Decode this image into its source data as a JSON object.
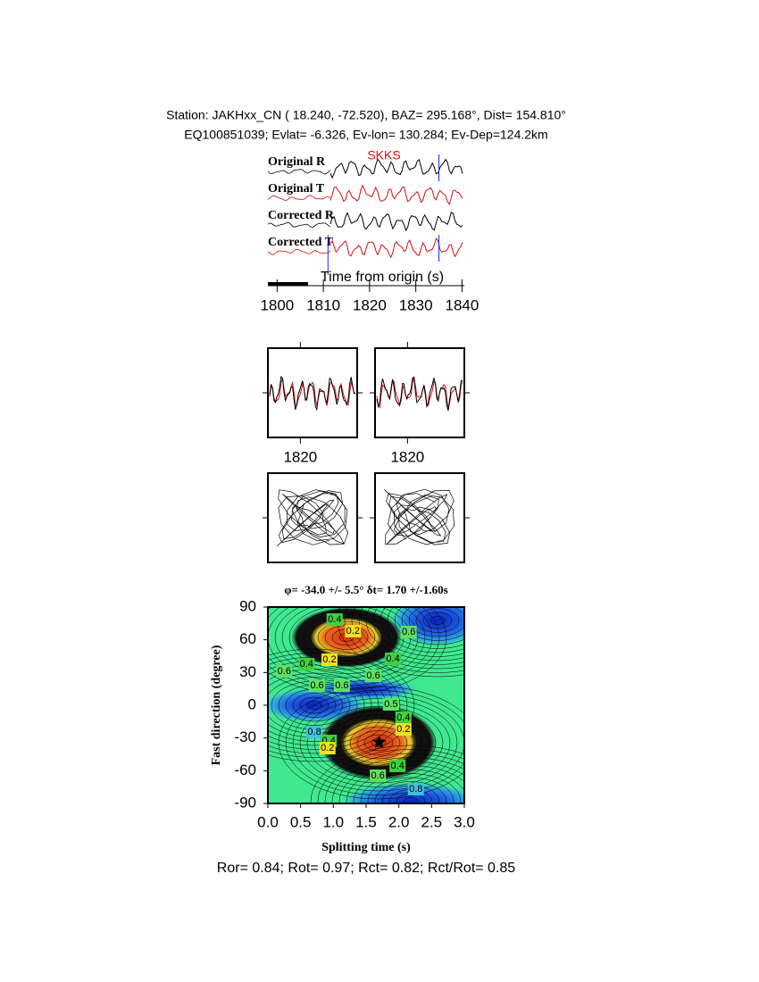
{
  "header": {
    "line1": "Station: JAKHxx_CN (  18.240,  -72.520), BAZ=  295.168°, Dist=  154.810°",
    "line2": "EQ100851039; Evlat=  -6.326, Ev-lon= 130.284; Ev-Dep=124.2km"
  },
  "chart_data": [
    {
      "type": "seismogram",
      "phase": "SKKS",
      "x_label": "Time from origin (s)",
      "traces": [
        {
          "name": "Original R",
          "color": "#000000"
        },
        {
          "name": "Original T",
          "color": "#d01010"
        },
        {
          "name": "Corrected R",
          "color": "#000000"
        },
        {
          "name": "Corrected T",
          "color": "#d01010"
        }
      ],
      "markers": [
        {
          "trace": 0,
          "time": 1835
        },
        {
          "trace": 3,
          "time": 1835
        },
        {
          "trace": 3,
          "time": 1811
        }
      ],
      "xlim": [
        1798,
        1840.5
      ],
      "xticks": [
        1800,
        1810,
        1820,
        1830,
        1840
      ]
    },
    {
      "type": "window",
      "xlim": [
        1814,
        1830.5
      ],
      "xticks": [
        1820
      ]
    },
    {
      "type": "window",
      "xlim": [
        1814,
        1830.5
      ],
      "xticks": [
        1820
      ]
    },
    {
      "type": "contour",
      "title": "φ= -34.0 +/- 5.5° δt= 1.70 +/-1.60s",
      "x_label": "Splitting time (s)",
      "y_label": "Fast direction (degree)",
      "xlim": [
        0,
        3
      ],
      "ylim": [
        -90,
        90
      ],
      "xticks": [
        {
          "value": 0,
          "label": "0.0"
        },
        0.5,
        {
          "value": 1,
          "label": "1.0"
        },
        1.5,
        {
          "value": 2,
          "label": "2.0"
        },
        2.5,
        {
          "value": 3,
          "label": "3.0"
        }
      ],
      "yticks": [
        -90,
        -60,
        -30,
        0,
        30,
        60,
        90
      ],
      "best": {
        "x": 1.7,
        "y": -34
      },
      "contour_labels": [
        {
          "x": 1.02,
          "y": 78.5,
          "value": 0.4
        },
        {
          "x": 1.3,
          "y": 67.9,
          "value": 0.2
        },
        {
          "x": 2.15,
          "y": 67.1,
          "value": 0.6
        },
        {
          "x": 0.94,
          "y": 41.7,
          "value": 0.2
        },
        {
          "x": 0.59,
          "y": 37.6,
          "value": 0.4
        },
        {
          "x": 1.91,
          "y": 42.5,
          "value": 0.4
        },
        {
          "x": 0.25,
          "y": 31.1,
          "value": 0.6
        },
        {
          "x": 1.61,
          "y": 27,
          "value": 0.6
        },
        {
          "x": 0.75,
          "y": 18,
          "value": 0.6
        },
        {
          "x": 1.13,
          "y": 18,
          "value": 0.6
        },
        {
          "x": 1.88,
          "y": 0.8,
          "value": 0.5
        },
        {
          "x": 2.07,
          "y": -11.5,
          "value": 0.4
        },
        {
          "x": 2.07,
          "y": -22.1,
          "value": 0.2
        },
        {
          "x": 0.71,
          "y": -24.5,
          "value": 0.8
        },
        {
          "x": 0.93,
          "y": -32.7,
          "value": 0.4
        },
        {
          "x": 0.91,
          "y": -39.3,
          "value": 0.2
        },
        {
          "x": 1.98,
          "y": -55.6,
          "value": 0.4
        },
        {
          "x": 1.68,
          "y": -64.6,
          "value": 0.6
        },
        {
          "x": 2.26,
          "y": -76.9,
          "value": 0.8
        }
      ]
    }
  ],
  "footer": "Ror= 0.84; Rot= 0.97; Rct= 0.82; Rct/Rot= 0.85"
}
